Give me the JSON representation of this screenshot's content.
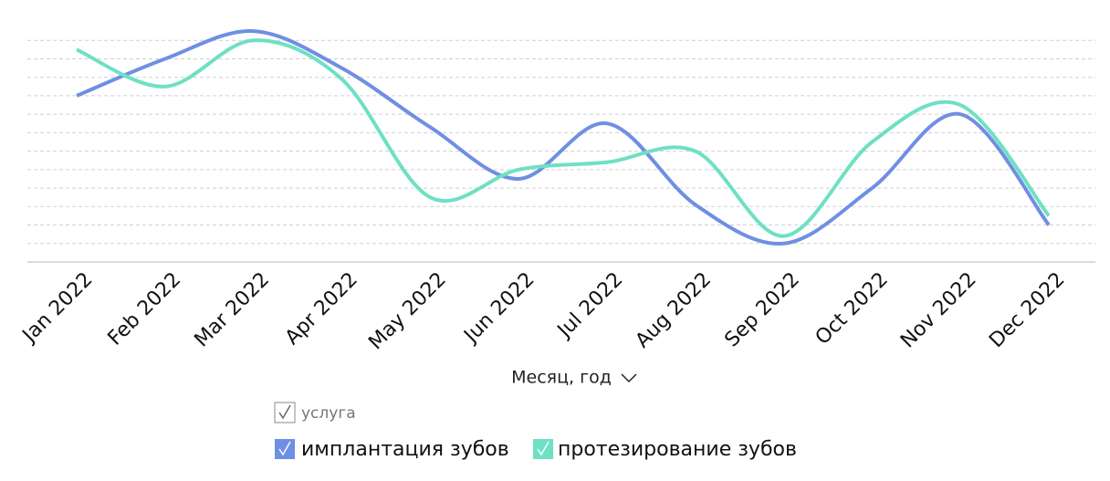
{
  "chart_data": {
    "type": "line",
    "x_label": "Месяц, год",
    "legend_title": "услуга",
    "categories": [
      "Jan 2022",
      "Feb 2022",
      "Mar 2022",
      "Apr 2022",
      "May 2022",
      "Jun 2022",
      "Jul 2022",
      "Aug 2022",
      "Sep 2022",
      "Oct 2022",
      "Nov 2022",
      "Dec 2022"
    ],
    "series": [
      {
        "name": "имплантация зубов",
        "color": "#6f8fe3",
        "values": [
          9.0,
          11.0,
          12.5,
          10.5,
          7.3,
          4.5,
          7.5,
          3.1,
          1.0,
          4.0,
          8.0,
          2.0
        ]
      },
      {
        "name": "протезирование зубов",
        "color": "#6ee0c4",
        "values": [
          11.5,
          9.5,
          12.0,
          9.9,
          3.5,
          5.0,
          5.4,
          6.0,
          1.4,
          6.5,
          8.5,
          2.5
        ]
      }
    ],
    "ylim": [
      0,
      13
    ],
    "yticks": [
      1,
      2,
      3,
      4,
      5,
      6,
      7,
      8,
      9,
      10,
      11,
      12
    ],
    "grid": true
  }
}
